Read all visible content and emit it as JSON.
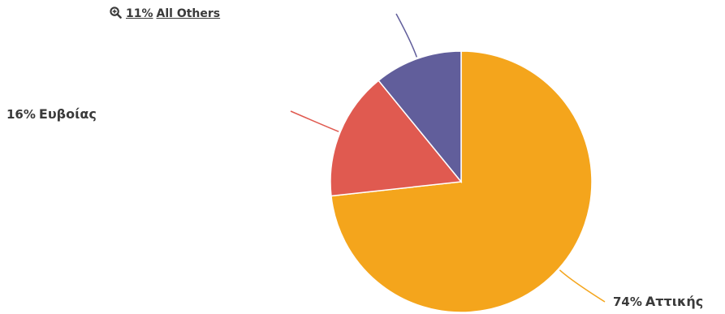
{
  "chart_data": {
    "type": "pie",
    "slices": [
      {
        "label": "Αττικής",
        "percent_label": "74%",
        "value": 74,
        "color": "#f4a51c"
      },
      {
        "label": "Ευβοίας",
        "percent_label": "16%",
        "value": 16,
        "color": "#e05a50"
      },
      {
        "label": "All Others",
        "percent_label": "11%",
        "value": 11,
        "color": "#615e9b"
      }
    ]
  },
  "icons": {
    "others_zoom": "zoom-in-icon"
  }
}
